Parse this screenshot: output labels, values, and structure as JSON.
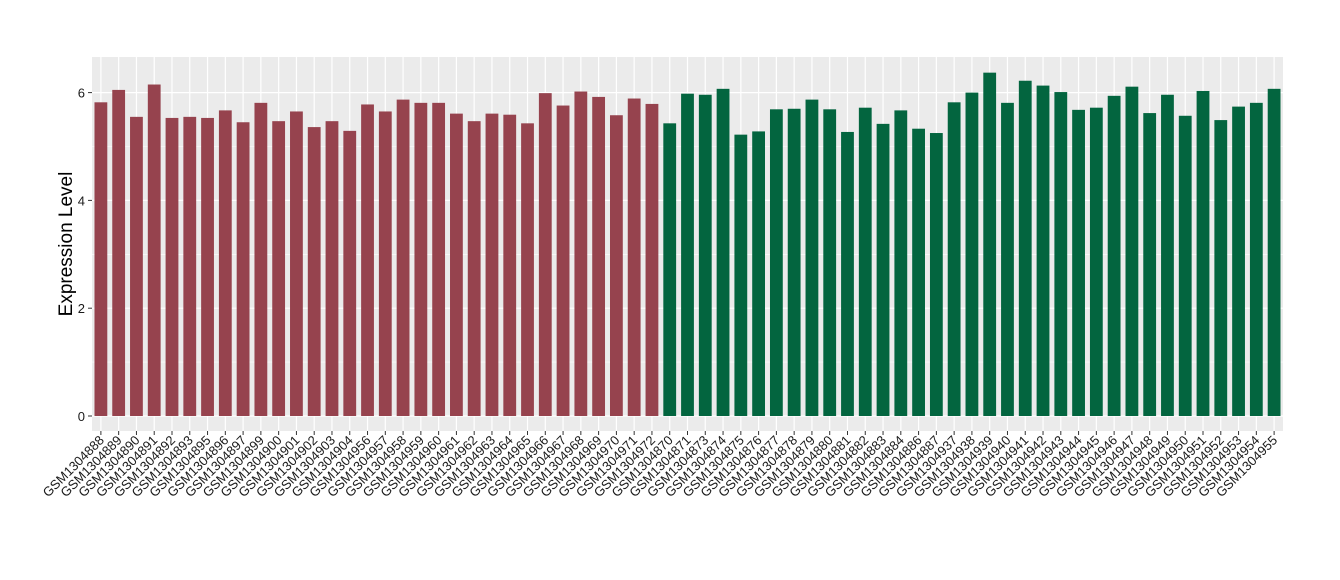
{
  "chart_data": {
    "type": "bar",
    "title": "",
    "xlabel": "",
    "ylabel": "Expression Level",
    "ylim": [
      0,
      6.65
    ],
    "yticks": [
      0,
      2,
      4,
      6
    ],
    "grid": true,
    "legend": "none",
    "panel_background": "#ebebeb",
    "grid_color": "#ffffff",
    "colors": {
      "group1": "#96434e",
      "group2": "#03653f"
    },
    "categories": [
      "GSM1304888",
      "GSM1304889",
      "GSM1304890",
      "GSM1304891",
      "GSM1304892",
      "GSM1304893",
      "GSM1304895",
      "GSM1304896",
      "GSM1304897",
      "GSM1304899",
      "GSM1304900",
      "GSM1304901",
      "GSM1304902",
      "GSM1304903",
      "GSM1304904",
      "GSM1304956",
      "GSM1304957",
      "GSM1304958",
      "GSM1304959",
      "GSM1304960",
      "GSM1304961",
      "GSM1304962",
      "GSM1304963",
      "GSM1304964",
      "GSM1304965",
      "GSM1304966",
      "GSM1304967",
      "GSM1304968",
      "GSM1304969",
      "GSM1304970",
      "GSM1304971",
      "GSM1304972",
      "GSM1304870",
      "GSM1304871",
      "GSM1304873",
      "GSM1304874",
      "GSM1304875",
      "GSM1304876",
      "GSM1304877",
      "GSM1304878",
      "GSM1304879",
      "GSM1304880",
      "GSM1304881",
      "GSM1304882",
      "GSM1304883",
      "GSM1304884",
      "GSM1304886",
      "GSM1304887",
      "GSM1304937",
      "GSM1304938",
      "GSM1304939",
      "GSM1304940",
      "GSM1304941",
      "GSM1304942",
      "GSM1304943",
      "GSM1304944",
      "GSM1304945",
      "GSM1304946",
      "GSM1304947",
      "GSM1304948",
      "GSM1304949",
      "GSM1304950",
      "GSM1304951",
      "GSM1304952",
      "GSM1304953",
      "GSM1304954",
      "GSM1304955"
    ],
    "values": [
      5.82,
      6.05,
      5.55,
      6.15,
      5.53,
      5.55,
      5.53,
      5.67,
      5.45,
      5.81,
      5.47,
      5.65,
      5.36,
      5.47,
      5.29,
      5.78,
      5.65,
      5.87,
      5.81,
      5.81,
      5.61,
      5.47,
      5.61,
      5.59,
      5.43,
      5.99,
      5.76,
      6.02,
      5.92,
      5.58,
      5.89,
      5.79,
      5.43,
      5.98,
      5.96,
      6.07,
      5.22,
      5.28,
      5.69,
      5.7,
      5.87,
      5.69,
      5.27,
      5.72,
      5.42,
      5.67,
      5.33,
      5.25,
      5.82,
      6.0,
      6.37,
      5.81,
      6.22,
      6.13,
      6.01,
      5.68,
      5.72,
      5.94,
      6.11,
      5.62,
      5.96,
      5.57,
      6.03,
      5.49,
      5.74,
      5.81,
      6.07
    ],
    "groups": [
      1,
      1,
      1,
      1,
      1,
      1,
      1,
      1,
      1,
      1,
      1,
      1,
      1,
      1,
      1,
      1,
      1,
      1,
      1,
      1,
      1,
      1,
      1,
      1,
      1,
      1,
      1,
      1,
      1,
      1,
      1,
      1,
      2,
      2,
      2,
      2,
      2,
      2,
      2,
      2,
      2,
      2,
      2,
      2,
      2,
      2,
      2,
      2,
      2,
      2,
      2,
      2,
      2,
      2,
      2,
      2,
      2,
      2,
      2,
      2,
      2,
      2,
      2,
      2,
      2,
      2,
      2
    ]
  }
}
